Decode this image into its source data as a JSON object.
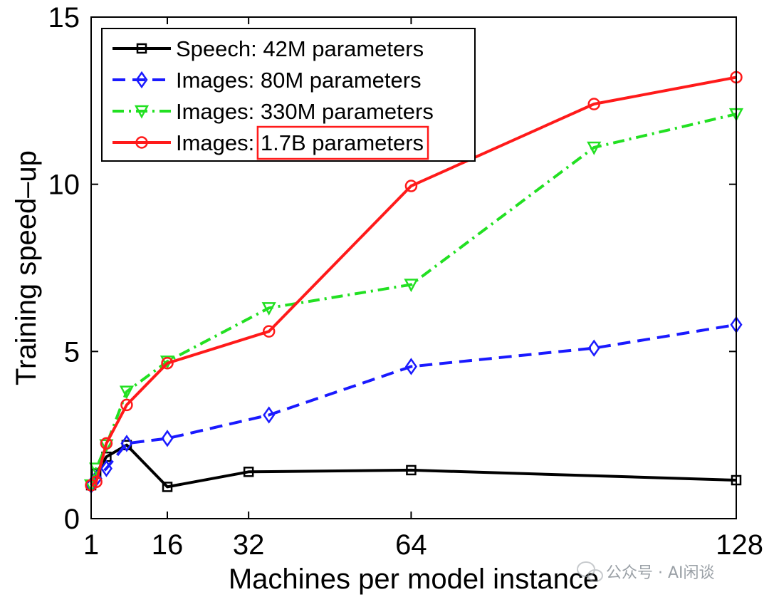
{
  "chart_data": {
    "type": "line",
    "title": "",
    "xlabel": "Machines per model instance",
    "ylabel": "Training speed–up",
    "xlim": [
      1,
      128
    ],
    "ylim": [
      0,
      15
    ],
    "xticks": [
      1,
      16,
      32,
      64,
      128
    ],
    "yticks": [
      0,
      5,
      10,
      15
    ],
    "grid": false,
    "legend_position": "top-left",
    "series": [
      {
        "name": "Speech: 42M parameters",
        "label_prefix": "Speech: 42M parameters",
        "label_highlight": "",
        "color": "#000000",
        "linestyle": "solid",
        "marker": "square",
        "x": [
          1,
          2,
          4,
          8,
          16,
          32,
          64,
          128
        ],
        "y": [
          1.0,
          1.35,
          1.85,
          2.2,
          0.95,
          1.4,
          1.45,
          1.15
        ]
      },
      {
        "name": "Images: 80M parameters",
        "label_prefix": "Images: 80M parameters",
        "label_highlight": "",
        "color": "#1a1aff",
        "linestyle": "dashed",
        "marker": "diamond",
        "x": [
          1,
          2,
          4,
          8,
          16,
          36,
          64,
          100,
          128
        ],
        "y": [
          1.0,
          1.2,
          1.5,
          2.25,
          2.4,
          3.1,
          4.55,
          5.1,
          5.8
        ]
      },
      {
        "name": "Images: 330M parameters",
        "label_prefix": "Images: 330M parameters",
        "label_highlight": "",
        "color": "#22e022",
        "linestyle": "dashdot",
        "marker": "triangle-down",
        "x": [
          1,
          2,
          4,
          8,
          16,
          36,
          64,
          100,
          128
        ],
        "y": [
          1.0,
          1.5,
          2.2,
          3.8,
          4.7,
          6.3,
          7.0,
          11.1,
          12.1
        ]
      },
      {
        "name": "Images: 1.7B parameters",
        "label_prefix": "Images: ",
        "label_highlight": "1.7B parameters",
        "color": "#ff1a1a",
        "linestyle": "solid",
        "marker": "circle",
        "x": [
          1,
          2,
          4,
          8,
          16,
          36,
          64,
          100,
          128
        ],
        "y": [
          1.0,
          1.1,
          2.25,
          3.4,
          4.65,
          5.6,
          9.95,
          12.4,
          13.2
        ]
      }
    ]
  },
  "watermark": {
    "text": "公众号 · AI闲谈",
    "icon": "wechat-icon"
  }
}
